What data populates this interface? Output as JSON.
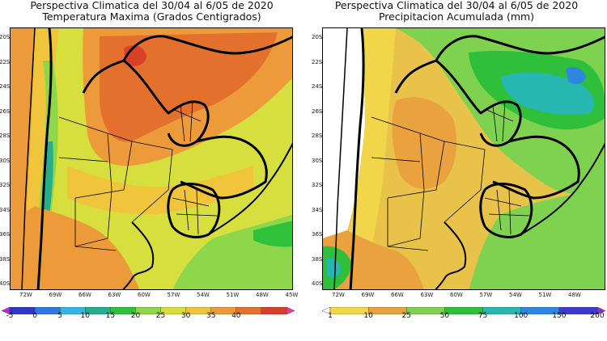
{
  "left_panel": {
    "title_line1": "Perspectiva Climatica del 30/04 al 6/05 de 2020",
    "title_line2": "Temperatura Maxima (Grados Centigrados)",
    "lat_labels": [
      "20S",
      "22S",
      "24S",
      "26S",
      "28S",
      "30S",
      "32S",
      "34S",
      "36S",
      "38S",
      "40S"
    ],
    "lon_labels": [
      "72W",
      "69W",
      "66W",
      "63W",
      "60W",
      "57W",
      "54W",
      "51W",
      "48W",
      "45W"
    ],
    "colorbar_labels": [
      "-5",
      "0",
      "5",
      "10",
      "15",
      "20",
      "25",
      "30",
      "35",
      "40"
    ],
    "colorbar_colors": [
      "#c226d8",
      "#2f36c8",
      "#2f78e0",
      "#36b3e6",
      "#27ae8a",
      "#2fc13a",
      "#8ed64a",
      "#d6df3e",
      "#f0c53b",
      "#ec9a3a",
      "#e3702d",
      "#d9402a",
      "#e23d8e"
    ]
  },
  "right_panel": {
    "title_line1": "Perspectiva Climatica del 30/04 al 6/05 de 2020",
    "title_line2": "Precipitacion Acumulada (mm)",
    "lat_labels": [
      "20S",
      "22S",
      "24S",
      "26S",
      "28S",
      "30S",
      "32S",
      "34S",
      "36S",
      "38S",
      "40S"
    ],
    "lon_labels": [
      "72W",
      "69W",
      "66W",
      "63W",
      "60W",
      "57W",
      "54W",
      "51W",
      "48W"
    ],
    "colorbar_labels": [
      "1",
      "10",
      "25",
      "50",
      "75",
      "100",
      "150",
      "200"
    ],
    "colorbar_colors": [
      "#ffffff",
      "#f2d64a",
      "#e9a23e",
      "#7fd24f",
      "#2fbf3a",
      "#28b7b0",
      "#2e86e0",
      "#3d3ad0",
      "#8c2fd3"
    ]
  },
  "colors": {
    "hot": "#e36a2e",
    "very_hot": "#d94a2b",
    "warm": "#ec9a3a",
    "mild": "#d6df3e",
    "cool": "#8ed64a",
    "cold": "#36b3e6",
    "border": "#000000"
  }
}
